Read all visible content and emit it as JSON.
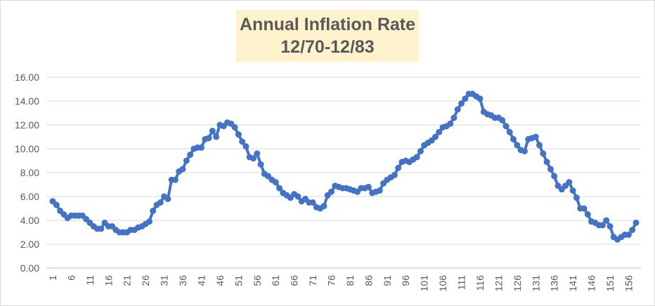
{
  "chart_data": {
    "type": "line",
    "title": "Annual Inflation Rate",
    "subtitle": "12/70-12/83",
    "xlabel": "",
    "ylabel": "",
    "ylim": [
      0,
      16
    ],
    "y_ticks": [
      "0.00",
      "2.00",
      "4.00",
      "6.00",
      "8.00",
      "10.00",
      "12.00",
      "14.00",
      "16.00"
    ],
    "x_ticks": [
      "1",
      "6",
      "11",
      "16",
      "21",
      "26",
      "31",
      "36",
      "41",
      "46",
      "51",
      "56",
      "61",
      "66",
      "71",
      "76",
      "81",
      "86",
      "91",
      "96",
      "101",
      "106",
      "111",
      "116",
      "121",
      "126",
      "131",
      "136",
      "141",
      "146",
      "151",
      "156"
    ],
    "grid": "horizontal",
    "legend": "none",
    "series_color": "#4472c4",
    "x_start": 1,
    "series": [
      {
        "values": [
          5.6,
          5.3,
          4.8,
          4.5,
          4.2,
          4.4,
          4.4,
          4.4,
          4.4,
          4.1,
          3.8,
          3.5,
          3.3,
          3.3,
          3.8,
          3.5,
          3.5,
          3.2,
          3.0,
          3.0,
          3.0,
          3.2,
          3.2,
          3.4,
          3.5,
          3.7,
          3.9,
          4.8,
          5.3,
          5.5,
          6.0,
          5.8,
          7.4,
          7.4,
          8.1,
          8.3,
          9.0,
          9.5,
          10.0,
          10.1,
          10.1,
          10.8,
          10.9,
          11.5,
          11.0,
          12.0,
          11.9,
          12.2,
          12.1,
          11.8,
          11.2,
          10.6,
          10.2,
          9.3,
          9.2,
          9.6,
          8.7,
          7.9,
          7.7,
          7.4,
          7.2,
          6.7,
          6.3,
          6.1,
          5.9,
          6.2,
          6.0,
          5.6,
          5.8,
          5.5,
          5.5,
          5.1,
          5.0,
          5.2,
          6.1,
          6.4,
          6.9,
          6.8,
          6.7,
          6.7,
          6.6,
          6.5,
          6.4,
          6.7,
          6.7,
          6.8,
          6.3,
          6.4,
          6.5,
          7.1,
          7.4,
          7.6,
          7.8,
          8.4,
          8.9,
          9.0,
          8.9,
          9.1,
          9.3,
          9.8,
          10.3,
          10.5,
          10.7,
          11.0,
          11.4,
          11.8,
          11.9,
          12.1,
          12.6,
          13.3,
          13.8,
          14.2,
          14.6,
          14.6,
          14.4,
          14.2,
          13.1,
          12.9,
          12.8,
          12.6,
          12.6,
          12.4,
          11.9,
          11.4,
          10.8,
          10.3,
          9.9,
          9.8,
          10.8,
          10.9,
          11.0,
          10.3,
          9.6,
          8.9,
          8.3,
          7.7,
          6.9,
          6.6,
          6.9,
          7.2,
          6.5,
          5.9,
          5.0,
          5.0,
          4.5,
          3.9,
          3.8,
          3.6,
          3.6,
          4.0,
          3.5,
          2.6,
          2.4,
          2.6,
          2.8,
          2.8,
          3.2,
          3.8
        ]
      }
    ]
  }
}
